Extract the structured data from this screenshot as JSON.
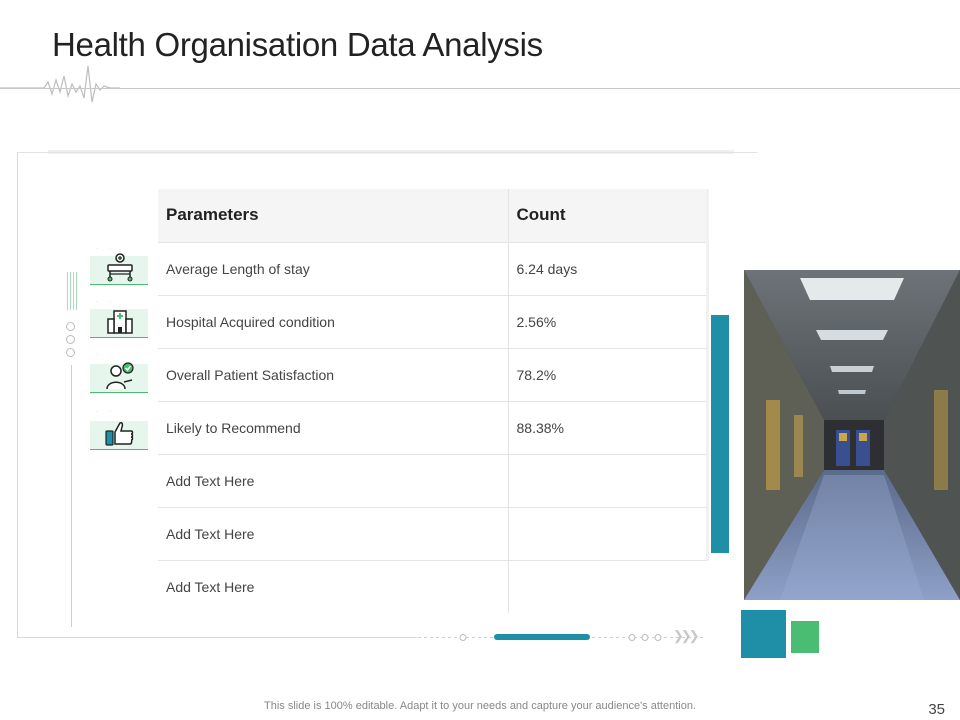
{
  "slide": {
    "title": "Health Organisation Data Analysis",
    "footer_note": "This slide is 100% editable. Adapt it to your needs and capture your audience's attention.",
    "page_number": "35"
  },
  "table": {
    "headers": [
      "Parameters",
      "Count"
    ],
    "rows": [
      [
        "Average Length of stay",
        "6.24 days"
      ],
      [
        "Hospital Acquired condition",
        "2.56%"
      ],
      [
        "Overall Patient Satisfaction",
        "78.2%"
      ],
      [
        "Likely to Recommend",
        "88.38%"
      ],
      [
        "Add Text Here",
        ""
      ],
      [
        "Add Text Here",
        ""
      ],
      [
        "Add Text Here",
        ""
      ]
    ]
  },
  "icons": [
    "hospital-bed-icon",
    "hospital-building-icon",
    "doctor-approval-icon",
    "thumbs-up-icon"
  ],
  "colors": {
    "accent_teal": "#1f8fa8",
    "accent_green": "#4bbd73"
  }
}
